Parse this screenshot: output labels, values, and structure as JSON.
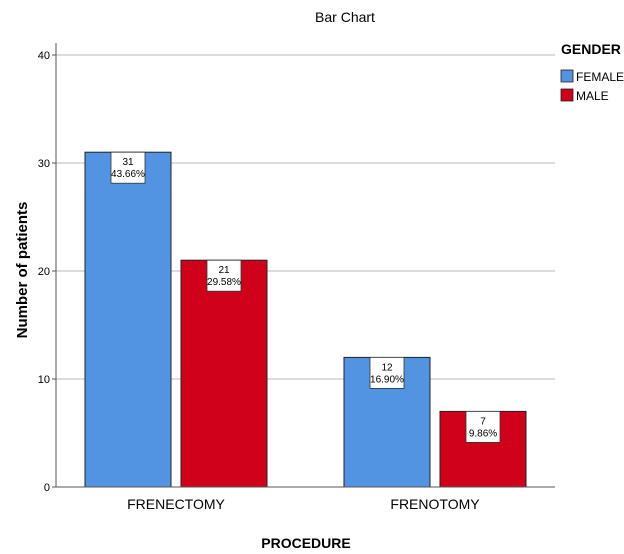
{
  "chart_data": {
    "type": "bar",
    "title": "Bar Chart",
    "xlabel": "PROCEDURE",
    "ylabel": "Number of patients",
    "ylim": [
      0,
      40
    ],
    "yticks": [
      0,
      10,
      20,
      30,
      40
    ],
    "grid": true,
    "legend_position": "top-right",
    "legend_title": "GENDER",
    "categories": [
      "FRENECTOMY",
      "FRENOTOMY"
    ],
    "series": [
      {
        "name": "FEMALE",
        "color": "#5294e2",
        "values": [
          31,
          12
        ],
        "percent_labels": [
          "43.66%",
          "16.90%"
        ]
      },
      {
        "name": "MALE",
        "color": "#d0021b",
        "values": [
          21,
          7
        ],
        "percent_labels": [
          "29.58%",
          "9.86%"
        ]
      }
    ]
  }
}
